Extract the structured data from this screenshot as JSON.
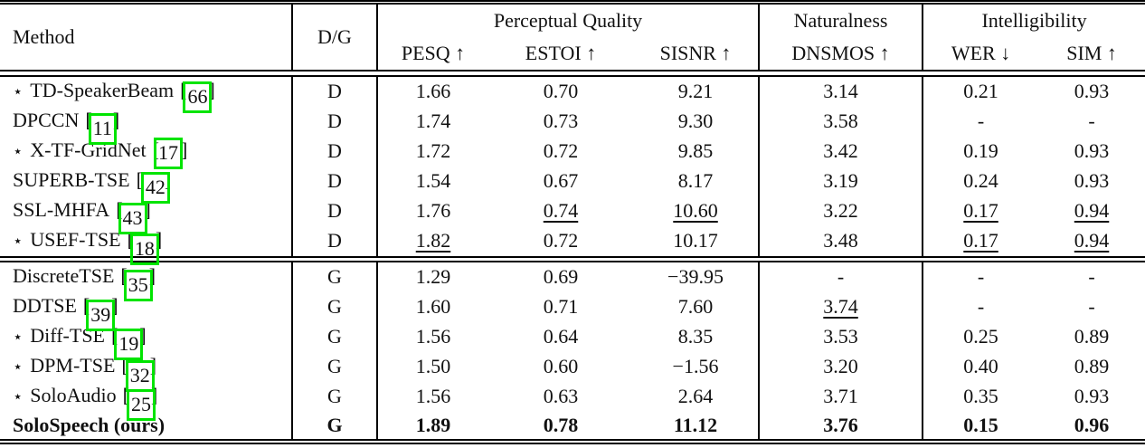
{
  "annotation": {
    "highlight_color": "#00e400"
  },
  "table": {
    "bracket_open": "[",
    "bracket_close": "]",
    "header": {
      "method": "Method",
      "dg": "D/G",
      "groups": [
        {
          "label": "Perceptual Quality"
        },
        {
          "label": "Naturalness"
        },
        {
          "label": "Intelligibility"
        }
      ],
      "metrics": [
        {
          "label": "PESQ ↑"
        },
        {
          "label": "ESTOI ↑"
        },
        {
          "label": "SISNR ↑"
        },
        {
          "label": "DNSMOS ↑"
        },
        {
          "label": "WER ↓"
        },
        {
          "label": "SIM ↑"
        }
      ]
    },
    "rows_d": [
      {
        "star": "⋆",
        "name": "TD-SpeakerBeam",
        "cite": "66",
        "dg": "D",
        "v": [
          {
            "t": "1.66",
            "c": ""
          },
          {
            "t": "0.70",
            "c": ""
          },
          {
            "t": "9.21",
            "c": ""
          },
          {
            "t": "3.14",
            "c": ""
          },
          {
            "t": "0.21",
            "c": ""
          },
          {
            "t": "0.93",
            "c": ""
          }
        ]
      },
      {
        "star": "",
        "name": "DPCCN",
        "cite": "11",
        "dg": "D",
        "v": [
          {
            "t": "1.74",
            "c": ""
          },
          {
            "t": "0.73",
            "c": ""
          },
          {
            "t": "9.30",
            "c": ""
          },
          {
            "t": "3.58",
            "c": ""
          },
          {
            "t": "-",
            "c": ""
          },
          {
            "t": "-",
            "c": ""
          }
        ]
      },
      {
        "star": "⋆",
        "name": "X-TF-GridNet",
        "cite": "17",
        "dg": "D",
        "v": [
          {
            "t": "1.72",
            "c": ""
          },
          {
            "t": "0.72",
            "c": ""
          },
          {
            "t": "9.85",
            "c": ""
          },
          {
            "t": "3.42",
            "c": ""
          },
          {
            "t": "0.19",
            "c": ""
          },
          {
            "t": "0.93",
            "c": ""
          }
        ]
      },
      {
        "star": "",
        "name": "SUPERB-TSE",
        "cite": "42",
        "dg": "D",
        "v": [
          {
            "t": "1.54",
            "c": ""
          },
          {
            "t": "0.67",
            "c": ""
          },
          {
            "t": "8.17",
            "c": ""
          },
          {
            "t": "3.19",
            "c": ""
          },
          {
            "t": "0.24",
            "c": ""
          },
          {
            "t": "0.93",
            "c": ""
          }
        ]
      },
      {
        "star": "",
        "name": "SSL-MHFA",
        "cite": "43",
        "dg": "D",
        "v": [
          {
            "t": "1.76",
            "c": ""
          },
          {
            "t": "0.74",
            "c": "ul"
          },
          {
            "t": "10.60",
            "c": "ul"
          },
          {
            "t": "3.22",
            "c": ""
          },
          {
            "t": "0.17",
            "c": "ul"
          },
          {
            "t": "0.94",
            "c": "ul"
          }
        ]
      },
      {
        "star": "⋆",
        "name": "USEF-TSE",
        "cite": "18",
        "dg": "D",
        "v": [
          {
            "t": "1.82",
            "c": "ul"
          },
          {
            "t": "0.72",
            "c": ""
          },
          {
            "t": "10.17",
            "c": ""
          },
          {
            "t": "3.48",
            "c": ""
          },
          {
            "t": "0.17",
            "c": "ul"
          },
          {
            "t": "0.94",
            "c": "ul"
          }
        ]
      }
    ],
    "rows_g": [
      {
        "star": "",
        "name": "DiscreteTSE",
        "cite": "35",
        "dg": "G",
        "v": [
          {
            "t": "1.29",
            "c": ""
          },
          {
            "t": "0.69",
            "c": ""
          },
          {
            "t": "−39.95",
            "c": ""
          },
          {
            "t": "-",
            "c": ""
          },
          {
            "t": "-",
            "c": ""
          },
          {
            "t": "-",
            "c": ""
          }
        ]
      },
      {
        "star": "",
        "name": "DDTSE",
        "cite": "39",
        "dg": "G",
        "v": [
          {
            "t": "1.60",
            "c": ""
          },
          {
            "t": "0.71",
            "c": ""
          },
          {
            "t": "7.60",
            "c": ""
          },
          {
            "t": "3.74",
            "c": "ul"
          },
          {
            "t": "-",
            "c": ""
          },
          {
            "t": "-",
            "c": ""
          }
        ]
      },
      {
        "star": "⋆",
        "name": "Diff-TSE",
        "cite": "19",
        "dg": "G",
        "v": [
          {
            "t": "1.56",
            "c": ""
          },
          {
            "t": "0.64",
            "c": ""
          },
          {
            "t": "8.35",
            "c": ""
          },
          {
            "t": "3.53",
            "c": ""
          },
          {
            "t": "0.25",
            "c": ""
          },
          {
            "t": "0.89",
            "c": ""
          }
        ]
      },
      {
        "star": "⋆",
        "name": "DPM-TSE",
        "cite": "32",
        "dg": "G",
        "v": [
          {
            "t": "1.50",
            "c": ""
          },
          {
            "t": "0.60",
            "c": ""
          },
          {
            "t": "−1.56",
            "c": ""
          },
          {
            "t": "3.20",
            "c": ""
          },
          {
            "t": "0.40",
            "c": ""
          },
          {
            "t": "0.89",
            "c": ""
          }
        ]
      },
      {
        "star": "⋆",
        "name": "SoloAudio",
        "cite": "25",
        "dg": "G",
        "v": [
          {
            "t": "1.56",
            "c": ""
          },
          {
            "t": "0.63",
            "c": ""
          },
          {
            "t": "2.64",
            "c": ""
          },
          {
            "t": "3.71",
            "c": ""
          },
          {
            "t": "0.35",
            "c": ""
          },
          {
            "t": "0.93",
            "c": ""
          }
        ]
      },
      {
        "star": "",
        "name": "SoloSpeech (ours)",
        "cite": "",
        "dg": "G",
        "v": [
          {
            "t": "1.89",
            "c": ""
          },
          {
            "t": "0.78",
            "c": ""
          },
          {
            "t": "11.12",
            "c": ""
          },
          {
            "t": "3.76",
            "c": ""
          },
          {
            "t": "0.15",
            "c": ""
          },
          {
            "t": "0.96",
            "c": ""
          }
        ]
      }
    ]
  }
}
